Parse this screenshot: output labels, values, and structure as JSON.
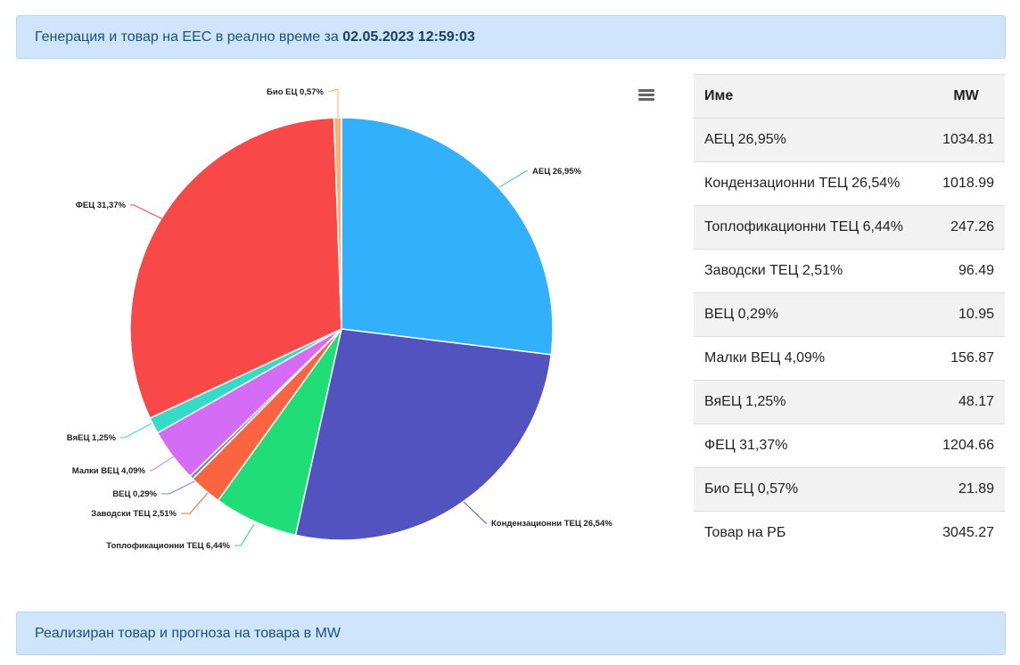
{
  "header": {
    "title": "Генерация и товар на ЕЕС в реално време за",
    "datetime": "02.05.2023 12:59:03"
  },
  "footer_banner": {
    "title": "Реализиран товар и прогноза на товара в MW"
  },
  "chart_data": {
    "type": "pie",
    "slices": [
      {
        "label": "АЕЦ 26,95%",
        "value": 26.95,
        "color": "#33b0fb"
      },
      {
        "label": "Кондензационни ТЕЦ 26,54%",
        "value": 26.54,
        "color": "#5253c0"
      },
      {
        "label": "Топлофикационни ТЕЦ 6,44%",
        "value": 6.44,
        "color": "#1fde78"
      },
      {
        "label": "Заводски ТЕЦ 2,51%",
        "value": 2.51,
        "color": "#fb6441"
      },
      {
        "label": "ВЕЦ 0,29%",
        "value": 0.29,
        "color": "#7d8ba8"
      },
      {
        "label": "Малки ВЕЦ 4,09%",
        "value": 4.09,
        "color": "#d46cf6"
      },
      {
        "label": "ВяЕЦ 1,25%",
        "value": 1.25,
        "color": "#36dac6"
      },
      {
        "label": "ФЕЦ 31,37%",
        "value": 31.37,
        "color": "#f84848"
      },
      {
        "label": "Био ЕЦ 0,57%",
        "value": 0.57,
        "color": "#f8b074"
      }
    ]
  },
  "table": {
    "headers": [
      "Име",
      "MW"
    ],
    "rows": [
      [
        "АЕЦ 26,95%",
        "1034.81"
      ],
      [
        "Кондензационни ТЕЦ 26,54%",
        "1018.99"
      ],
      [
        "Топлофикационни ТЕЦ 6,44%",
        "247.26"
      ],
      [
        "Заводски ТЕЦ 2,51%",
        "96.49"
      ],
      [
        "ВЕЦ 0,29%",
        "10.95"
      ],
      [
        "Малки ВЕЦ 4,09%",
        "156.87"
      ],
      [
        "ВяЕЦ 1,25%",
        "48.17"
      ],
      [
        "ФЕЦ 31,37%",
        "1204.66"
      ],
      [
        "Био ЕЦ 0,57%",
        "21.89"
      ],
      [
        "Товар на РБ",
        "3045.27"
      ]
    ]
  }
}
